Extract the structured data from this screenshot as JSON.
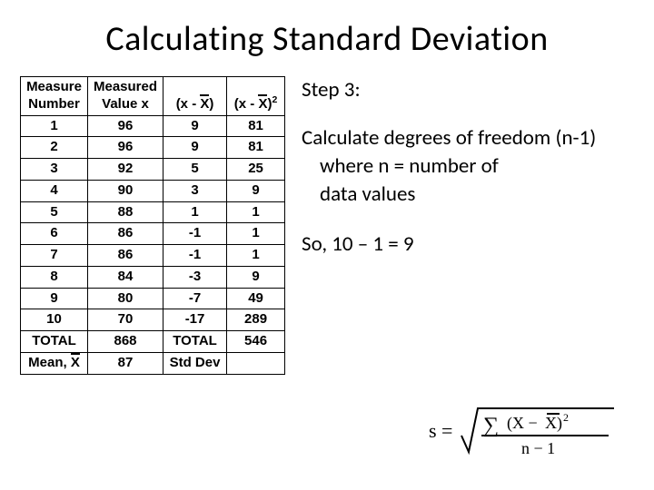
{
  "title": "Calculating Standard Deviation",
  "table": {
    "headers": {
      "measure_number_l1": "Measure",
      "measure_number_l2": "Number",
      "measured_value_l1": "Measured",
      "measured_value_l2": "Value x",
      "dev": "(x - X)",
      "devsq_prefix": "(x - X)",
      "devsq_exp": "2"
    },
    "rows": [
      {
        "n": "1",
        "x": "96",
        "d": "9",
        "d2": "81"
      },
      {
        "n": "2",
        "x": "96",
        "d": "9",
        "d2": "81"
      },
      {
        "n": "3",
        "x": "92",
        "d": "5",
        "d2": "25"
      },
      {
        "n": "4",
        "x": "90",
        "d": "3",
        "d2": "9"
      },
      {
        "n": "5",
        "x": "88",
        "d": "1",
        "d2": "1"
      },
      {
        "n": "6",
        "x": "86",
        "d": "-1",
        "d2": "1"
      },
      {
        "n": "7",
        "x": "86",
        "d": "-1",
        "d2": "1"
      },
      {
        "n": "8",
        "x": "84",
        "d": "-3",
        "d2": "9"
      },
      {
        "n": "9",
        "x": "80",
        "d": "-7",
        "d2": "49"
      },
      {
        "n": "10",
        "x": "70",
        "d": "-17",
        "d2": "289"
      }
    ],
    "total_row": {
      "label": "TOTAL",
      "x": "868",
      "d": "TOTAL",
      "d2": "546"
    },
    "mean_row": {
      "label": "Mean, X",
      "x": "87",
      "d": "Std Dev",
      "d2": ""
    }
  },
  "right": {
    "step": "Step 3:",
    "p1": "Calculate degrees of freedom (n-1)",
    "p2a": "where n = number of",
    "p2b": "data values",
    "p3": "So, 10 – 1 = 9"
  },
  "formula": {
    "s_eq": "s =",
    "sum": "∑",
    "num1": "(X −",
    "num2": "X)",
    "exp": "2",
    "den": "n − 1"
  },
  "style": {
    "bg": "#ffffff",
    "text": "#000000",
    "border": "#000000",
    "title_fontsize": 38,
    "body_fontsize": 23,
    "table_fontsize": 15,
    "font_family_title": "Calibri",
    "font_family_table": "Arial"
  }
}
